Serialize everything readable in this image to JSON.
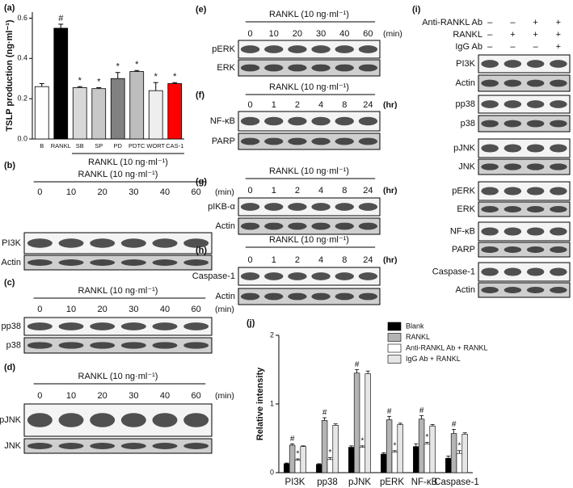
{
  "chart_data": [
    {
      "type": "bar",
      "label": "(a)",
      "ylabel": "TSLP production (ng·ml⁻¹)",
      "categories": [
        "B",
        "RANKL",
        "SB",
        "SP",
        "PD",
        "PDTC",
        "WORT",
        "CAS-1"
      ],
      "values": [
        0.26,
        0.55,
        0.255,
        0.25,
        0.3,
        0.335,
        0.24,
        0.275
      ],
      "errors": [
        0.015,
        0.02,
        0.005,
        0.005,
        0.03,
        0.005,
        0.04,
        0.005
      ],
      "markers": [
        null,
        "#",
        "*",
        "*",
        "*",
        "*",
        "*",
        "*"
      ],
      "colors": [
        "#ffffff",
        "#000000",
        "#d8d8d8",
        "#c8c8c8",
        "#808080",
        "#bdbdbd",
        "#eeeeee",
        "#ff0000"
      ],
      "group_label": "RANKL (10 ng·ml⁻¹)",
      "ylim": [
        0,
        0.63
      ],
      "yticks": [
        {
          "value": 0,
          "label": "0.0"
        },
        {
          "value": 0.2,
          "label": "0.2"
        },
        {
          "value": 0.4,
          "label": "0.4"
        },
        {
          "value": 0.6,
          "label": "0.6"
        }
      ]
    },
    {
      "type": "grouped-bar",
      "label": "(j)",
      "ylabel": "Relative intensity",
      "categories": [
        "PI3K",
        "pp38",
        "pJNK",
        "pERK",
        "NF-κB",
        "Caspase-1"
      ],
      "series": [
        {
          "name": "Blank",
          "color": "#000000",
          "values": [
            0.13,
            0.12,
            0.37,
            0.27,
            0.38,
            0.21
          ],
          "errors": [
            0.01,
            0.01,
            0.02,
            0.02,
            0.04,
            0.03
          ],
          "markers": [
            null,
            null,
            null,
            null,
            null,
            null
          ]
        },
        {
          "name": "RANKL",
          "color": "#b4b4b4",
          "values": [
            0.4,
            0.76,
            1.45,
            0.77,
            0.78,
            0.57
          ],
          "errors": [
            0.02,
            0.04,
            0.05,
            0.05,
            0.05,
            0.06
          ],
          "markers": [
            "#",
            "#",
            "#",
            "#",
            "#",
            "#"
          ]
        },
        {
          "name": "Anti-RANKL Ab + RANKL",
          "color": "#ffffff",
          "values": [
            0.18,
            0.19,
            0.37,
            0.3,
            0.42,
            0.28
          ],
          "errors": [
            0.02,
            0.03,
            0.02,
            0.02,
            0.02,
            0.04
          ],
          "markers": [
            "*",
            "*",
            "*",
            "*",
            "*",
            "*"
          ]
        },
        {
          "name": "IgG Ab + RANKL",
          "color": "#e6e6e6",
          "values": [
            0.38,
            0.69,
            1.44,
            0.7,
            0.68,
            0.56
          ],
          "errors": [
            0.01,
            0.02,
            0.04,
            0.02,
            0.02,
            0.02
          ],
          "markers": [
            null,
            null,
            null,
            null,
            null,
            null
          ]
        }
      ],
      "ylim": [
        0,
        2
      ],
      "yticks": [
        0,
        1,
        2
      ]
    }
  ],
  "blots": [
    {
      "label": "(b)",
      "title": "RANKL (10 ng·ml⁻¹)",
      "lanes": [
        0,
        10,
        20,
        30,
        40,
        60
      ],
      "unit": "(min)",
      "rows": [
        "PI3K",
        "Actin"
      ]
    },
    {
      "label": "(c)",
      "title": "RANKL (10 ng·ml⁻¹)",
      "lanes": [
        0,
        10,
        20,
        30,
        40,
        60
      ],
      "unit": "(min)",
      "rows": [
        "pp38",
        "p38"
      ]
    },
    {
      "label": "(d)",
      "title": "RANKL (10 ng·ml⁻¹)",
      "lanes": [
        0,
        10,
        20,
        30,
        40,
        60
      ],
      "unit": "(min)",
      "rows": [
        "pJNK",
        "JNK"
      ]
    },
    {
      "label": "(e)",
      "title": "RANKL (10 ng·ml⁻¹)",
      "lanes": [
        0,
        10,
        20,
        30,
        40,
        60
      ],
      "unit": "(min)",
      "rows": [
        "pERK",
        "ERK"
      ]
    },
    {
      "label": "(f)",
      "title": "RANKL (10 ng·ml⁻¹)",
      "lanes": [
        0,
        1,
        2,
        4,
        8,
        24
      ],
      "unit": "(hr)",
      "rows": [
        "NF-κB",
        "PARP"
      ]
    },
    {
      "label": "(g)",
      "title": "RANKL (10 ng·ml⁻¹)",
      "lanes": [
        0,
        1,
        2,
        4,
        8,
        24
      ],
      "unit": "(hr)",
      "rows": [
        "pIKB-α",
        "Actin"
      ]
    },
    {
      "label": "(h)",
      "title": "RANKL (10 ng·ml⁻¹)",
      "lanes": [
        0,
        1,
        2,
        4,
        8,
        24
      ],
      "unit": "(hr)",
      "rows": [
        "Caspase-1",
        "Actin"
      ]
    }
  ],
  "blot_i": {
    "label": "(i)",
    "conditions": [
      {
        "name": "Anti-RANKL Ab",
        "signs": [
          "–",
          "–",
          "+",
          "+"
        ]
      },
      {
        "name": "RANKL",
        "signs": [
          "–",
          "+",
          "+",
          "+"
        ]
      },
      {
        "name": "IgG Ab",
        "signs": [
          "–",
          "–",
          "–",
          "+"
        ]
      }
    ],
    "rows": [
      "PI3K",
      "Actin",
      "pp38",
      "p38",
      "pJNK",
      "JNK",
      "pERK",
      "ERK",
      "NF-κB",
      "PARP",
      "Caspase-1",
      "Actin"
    ]
  }
}
